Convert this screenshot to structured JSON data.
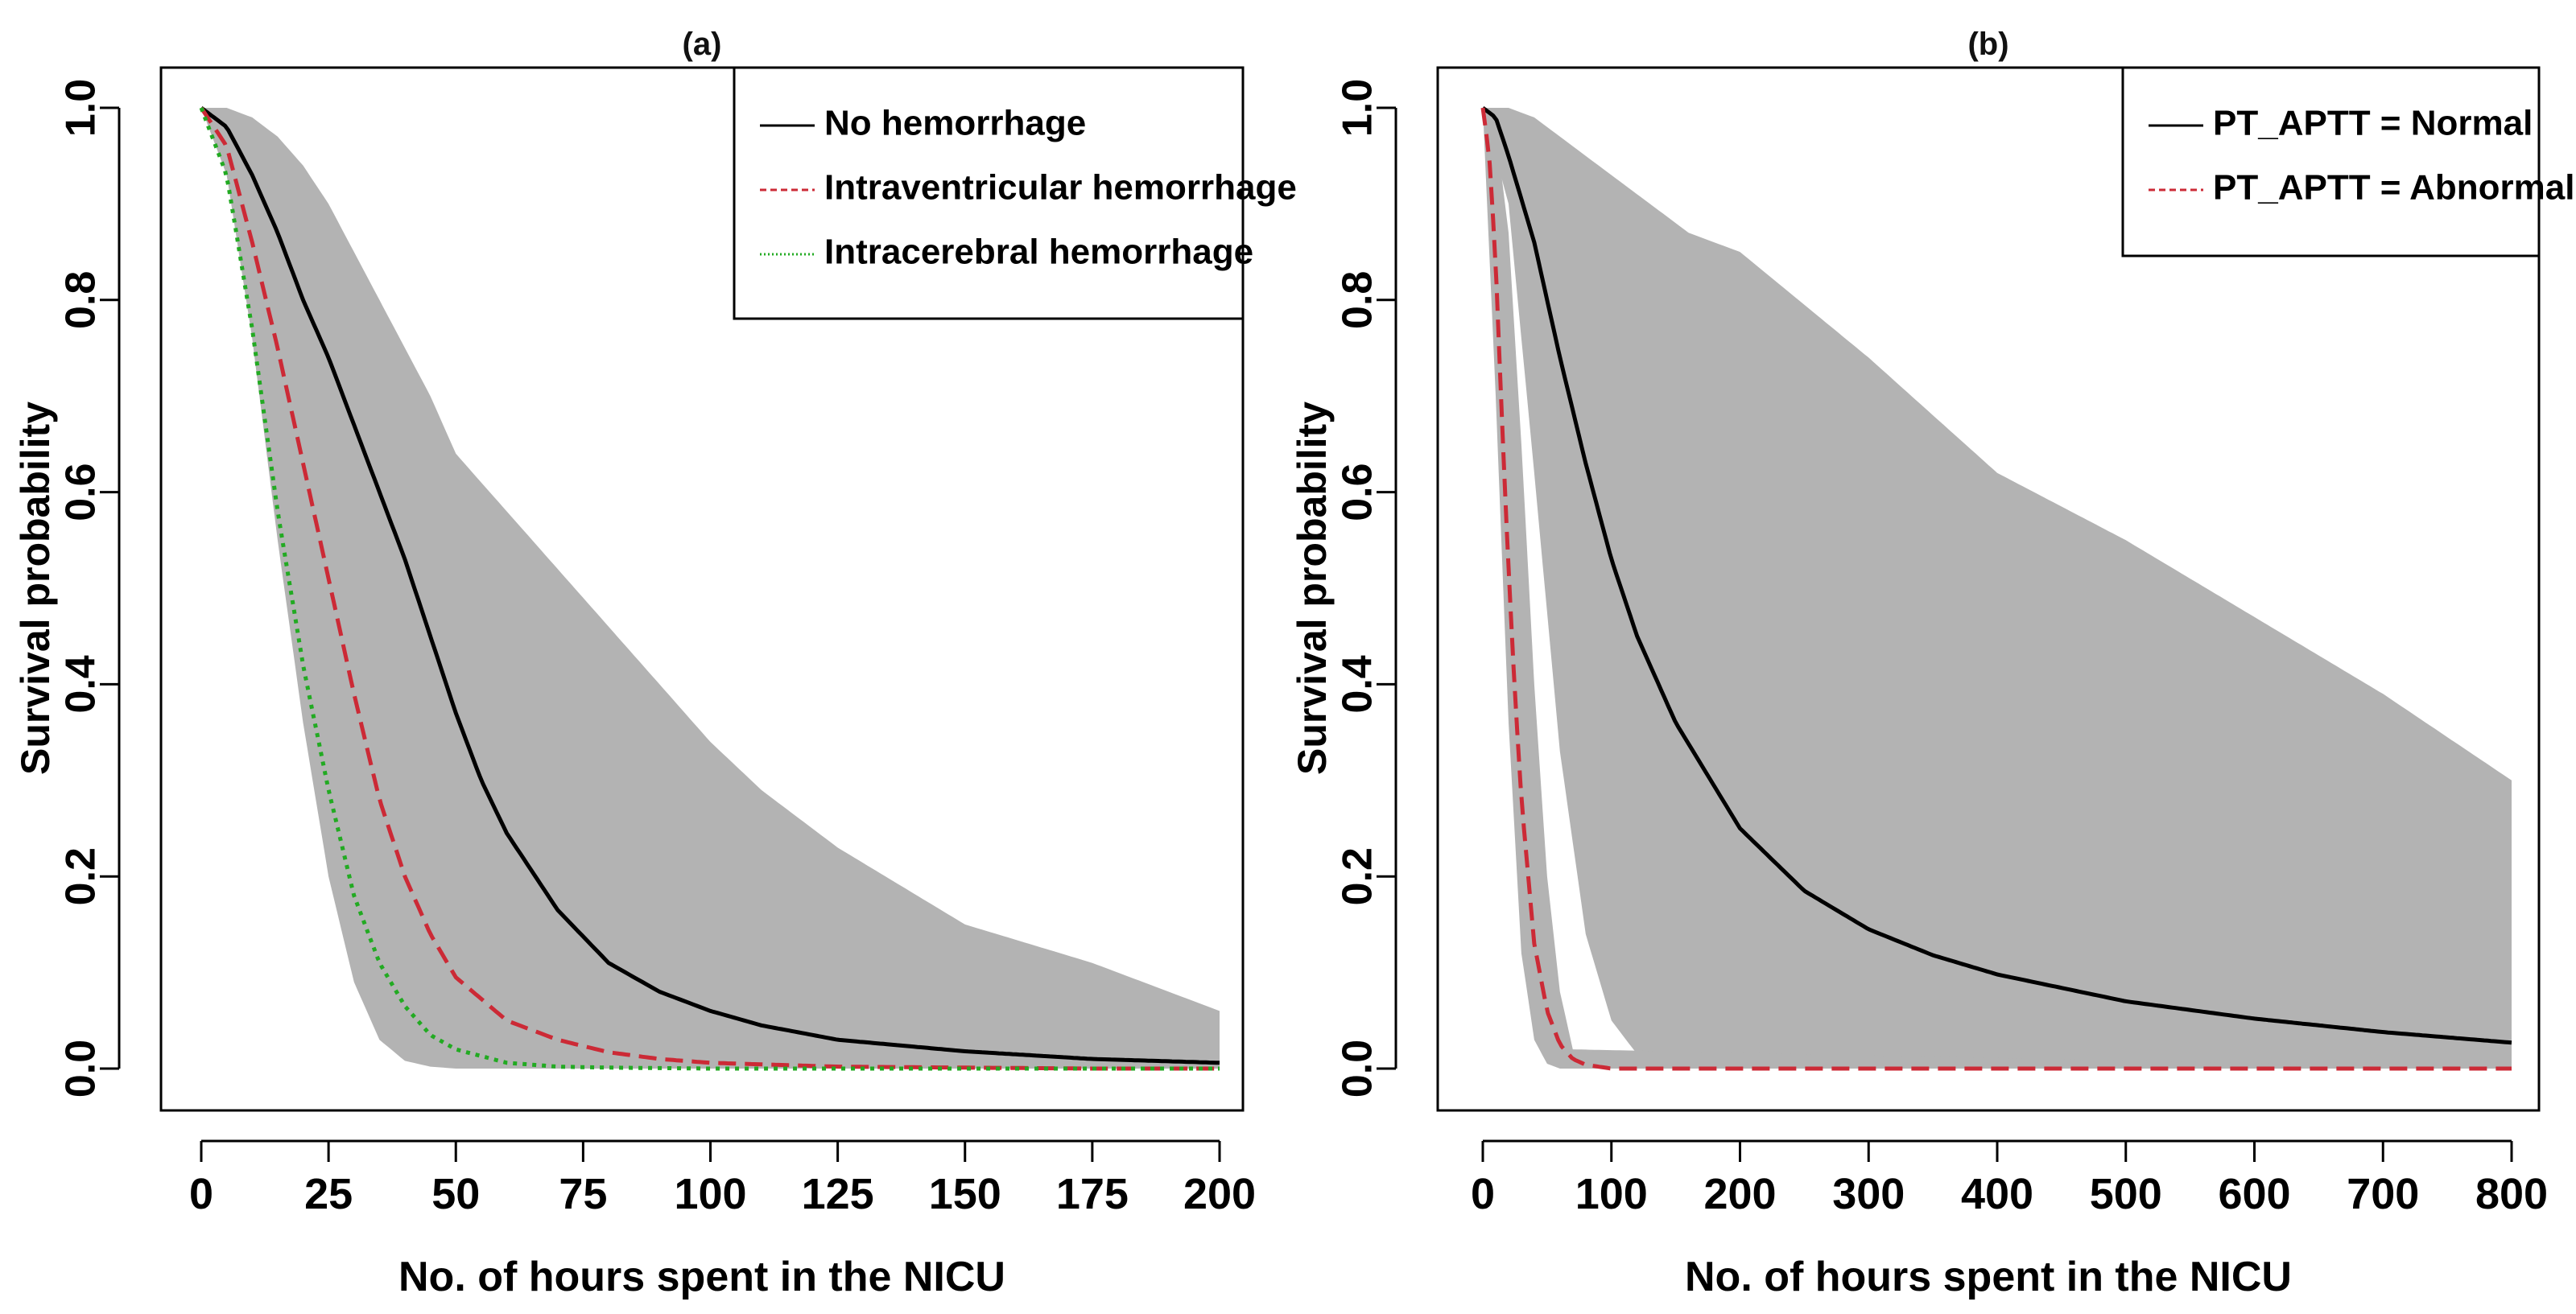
{
  "chart_data": [
    {
      "type": "line",
      "panel_label": "(a)",
      "title": "(a)",
      "xlabel": "No. of hours spent in the NICU",
      "ylabel": "Survival probability",
      "xlim": [
        0,
        200
      ],
      "ylim": [
        0,
        1
      ],
      "x_ticks": [
        0,
        25,
        50,
        75,
        100,
        125,
        150,
        175,
        200
      ],
      "x_tick_labels": [
        "0",
        "25",
        "50",
        "75",
        "100",
        "125",
        "150",
        "175",
        "200"
      ],
      "y_ticks": [
        0,
        0.2,
        0.4,
        0.6,
        0.8,
        1.0
      ],
      "y_tick_labels": [
        "0.0",
        "0.2",
        "0.4",
        "0.6",
        "0.8",
        "1.0"
      ],
      "grid": false,
      "legend_position": "top-right",
      "confidence_band": {
        "name": "95% confidence band",
        "color": "#b3b3b3",
        "x": [
          0,
          5,
          10,
          15,
          20,
          25,
          30,
          35,
          40,
          45,
          50,
          60,
          70,
          80,
          90,
          100,
          110,
          125,
          150,
          175,
          200
        ],
        "lower": [
          1.0,
          0.93,
          0.76,
          0.55,
          0.36,
          0.2,
          0.09,
          0.03,
          0.008,
          0.002,
          0.0,
          0.0,
          0.0,
          0.0,
          0.0,
          0.0,
          0.0,
          0.0,
          0.0,
          0.0,
          0.0
        ],
        "upper": [
          1.0,
          1.0,
          0.99,
          0.97,
          0.94,
          0.9,
          0.85,
          0.8,
          0.75,
          0.7,
          0.64,
          0.58,
          0.52,
          0.46,
          0.4,
          0.34,
          0.29,
          0.23,
          0.15,
          0.11,
          0.06
        ]
      },
      "series": [
        {
          "name": "No hemorrhage",
          "color": "#000000",
          "style": "solid",
          "x": [
            0,
            5,
            10,
            15,
            20,
            25,
            30,
            35,
            40,
            45,
            50,
            55,
            60,
            70,
            80,
            90,
            100,
            110,
            125,
            150,
            175,
            200
          ],
          "values": [
            1.0,
            0.98,
            0.93,
            0.87,
            0.8,
            0.74,
            0.67,
            0.6,
            0.53,
            0.45,
            0.37,
            0.3,
            0.245,
            0.165,
            0.11,
            0.08,
            0.06,
            0.045,
            0.03,
            0.018,
            0.01,
            0.006
          ]
        },
        {
          "name": "Intraventricular hemorrhage",
          "color": "#cc2a36",
          "style": "dashed",
          "x": [
            0,
            5,
            10,
            15,
            20,
            25,
            30,
            35,
            40,
            45,
            50,
            60,
            70,
            80,
            90,
            100,
            125,
            150,
            175,
            200
          ],
          "values": [
            1.0,
            0.96,
            0.86,
            0.75,
            0.63,
            0.51,
            0.39,
            0.28,
            0.2,
            0.14,
            0.095,
            0.05,
            0.03,
            0.017,
            0.01,
            0.006,
            0.002,
            0.001,
            0.0,
            0.0
          ]
        },
        {
          "name": "Intracerebral hemorrhage",
          "color": "#22aa22",
          "style": "dotted",
          "x": [
            0,
            5,
            10,
            15,
            20,
            25,
            30,
            35,
            40,
            45,
            50,
            60,
            70,
            80,
            100,
            125,
            150,
            175,
            200
          ],
          "values": [
            1.0,
            0.93,
            0.77,
            0.58,
            0.42,
            0.29,
            0.18,
            0.11,
            0.065,
            0.035,
            0.02,
            0.006,
            0.002,
            0.001,
            0.0,
            0.0,
            0.0,
            0.0,
            0.0
          ]
        }
      ]
    },
    {
      "type": "line",
      "panel_label": "(b)",
      "title": "(b)",
      "xlabel": "No. of hours spent in the NICU",
      "ylabel": "Survival probability",
      "xlim": [
        0,
        800
      ],
      "ylim": [
        0,
        1
      ],
      "x_ticks": [
        0,
        100,
        200,
        300,
        400,
        500,
        600,
        700,
        800
      ],
      "x_tick_labels": [
        "0",
        "100",
        "200",
        "300",
        "400",
        "500",
        "600",
        "700",
        "800"
      ],
      "y_ticks": [
        0,
        0.2,
        0.4,
        0.6,
        0.8,
        1.0
      ],
      "y_tick_labels": [
        "0.0",
        "0.2",
        "0.4",
        "0.6",
        "0.8",
        "1.0"
      ],
      "grid": false,
      "legend_position": "top-right",
      "confidence_bands": [
        {
          "name": "Normal 95% band",
          "color": "#b3b3b3",
          "x": [
            0,
            20,
            40,
            60,
            80,
            100,
            120,
            140,
            160,
            200,
            300,
            400,
            500,
            600,
            700,
            800
          ],
          "lower": [
            1.0,
            0.9,
            0.62,
            0.33,
            0.14,
            0.05,
            0.015,
            0.004,
            0.0,
            0.0,
            0.0,
            0.0,
            0.0,
            0.0,
            0.0,
            0.0
          ],
          "upper": [
            1.0,
            1.0,
            0.99,
            0.97,
            0.95,
            0.93,
            0.91,
            0.89,
            0.87,
            0.85,
            0.74,
            0.62,
            0.55,
            0.47,
            0.39,
            0.3
          ]
        },
        {
          "name": "Abnormal 95% band",
          "color": "#b3b3b3",
          "x": [
            0,
            10,
            20,
            30,
            40,
            50,
            60,
            70,
            800
          ],
          "lower": [
            1.0,
            0.7,
            0.36,
            0.12,
            0.03,
            0.005,
            0.0,
            0.0,
            0.0
          ],
          "upper": [
            1.0,
            0.98,
            0.87,
            0.65,
            0.4,
            0.2,
            0.08,
            0.02,
            0.0
          ]
        }
      ],
      "series": [
        {
          "name": "PT_APTT = Normal",
          "color": "#000000",
          "style": "solid",
          "x": [
            0,
            10,
            20,
            40,
            60,
            80,
            100,
            120,
            150,
            200,
            250,
            300,
            350,
            400,
            500,
            600,
            700,
            800
          ],
          "values": [
            1.0,
            0.99,
            0.95,
            0.86,
            0.74,
            0.63,
            0.53,
            0.45,
            0.36,
            0.25,
            0.185,
            0.145,
            0.118,
            0.098,
            0.07,
            0.052,
            0.038,
            0.027
          ]
        },
        {
          "name": "PT_APTT = Abnormal",
          "color": "#cc2a36",
          "style": "dashed",
          "x": [
            0,
            5,
            10,
            15,
            20,
            25,
            30,
            40,
            50,
            60,
            70,
            80,
            100,
            800
          ],
          "values": [
            1.0,
            0.95,
            0.84,
            0.67,
            0.52,
            0.39,
            0.28,
            0.13,
            0.06,
            0.025,
            0.01,
            0.004,
            0.0,
            0.0
          ]
        }
      ]
    }
  ]
}
